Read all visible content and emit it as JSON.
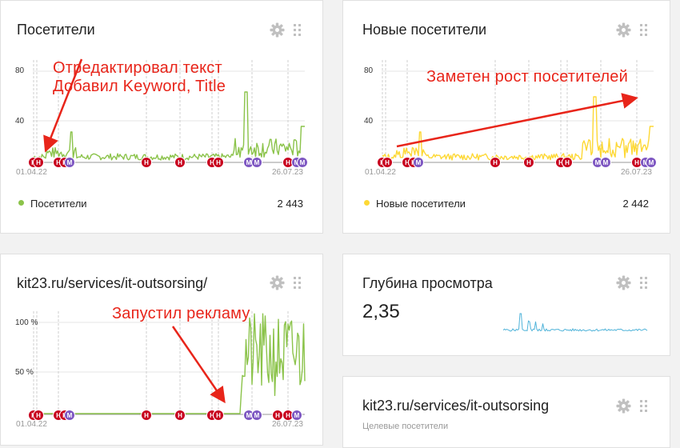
{
  "widgets": {
    "visitors": {
      "title": "Посетители",
      "y_ticks": [
        "80",
        "40"
      ],
      "date_start": "01.04.22",
      "date_end": "26.07.23",
      "legend_label": "Посетители",
      "total": "2 443",
      "color": "#8bc34a"
    },
    "new_visitors": {
      "title": "Новые посетители",
      "y_ticks": [
        "80",
        "40"
      ],
      "date_start": "01.04.22",
      "date_end": "26.07.23",
      "legend_label": "Новые посетители",
      "total": "2 442",
      "color": "#fdd835"
    },
    "page": {
      "title": "kit23.ru/services/it-outsorsing/",
      "y_ticks": [
        "100 %",
        "50 %"
      ],
      "date_start": "01.04.22",
      "date_end": "26.07.23",
      "color": "#8bc34a"
    },
    "depth": {
      "title": "Глубина просмотра",
      "value": "2,35",
      "color": "#4fb3d9"
    },
    "goal": {
      "title": "kit23.ru/services/it-outsorsing",
      "subtitle": "Целевые посетители"
    }
  },
  "marker_labels": {
    "note": "Н",
    "meta": "М"
  },
  "annotations": {
    "a1_line1": "Отредактировал текст",
    "a1_line2": "Добавил Keyword, Title",
    "a2": "Заметен рост посетителей",
    "a3": "Запустил рекламу"
  },
  "colors": {
    "annotation": "#e8251a",
    "note_marker": "#c8001e",
    "meta_marker": "#7e57c2",
    "icon": "#c0c0c0"
  },
  "icons": [
    "gear-icon",
    "drag-handle-icon"
  ]
}
